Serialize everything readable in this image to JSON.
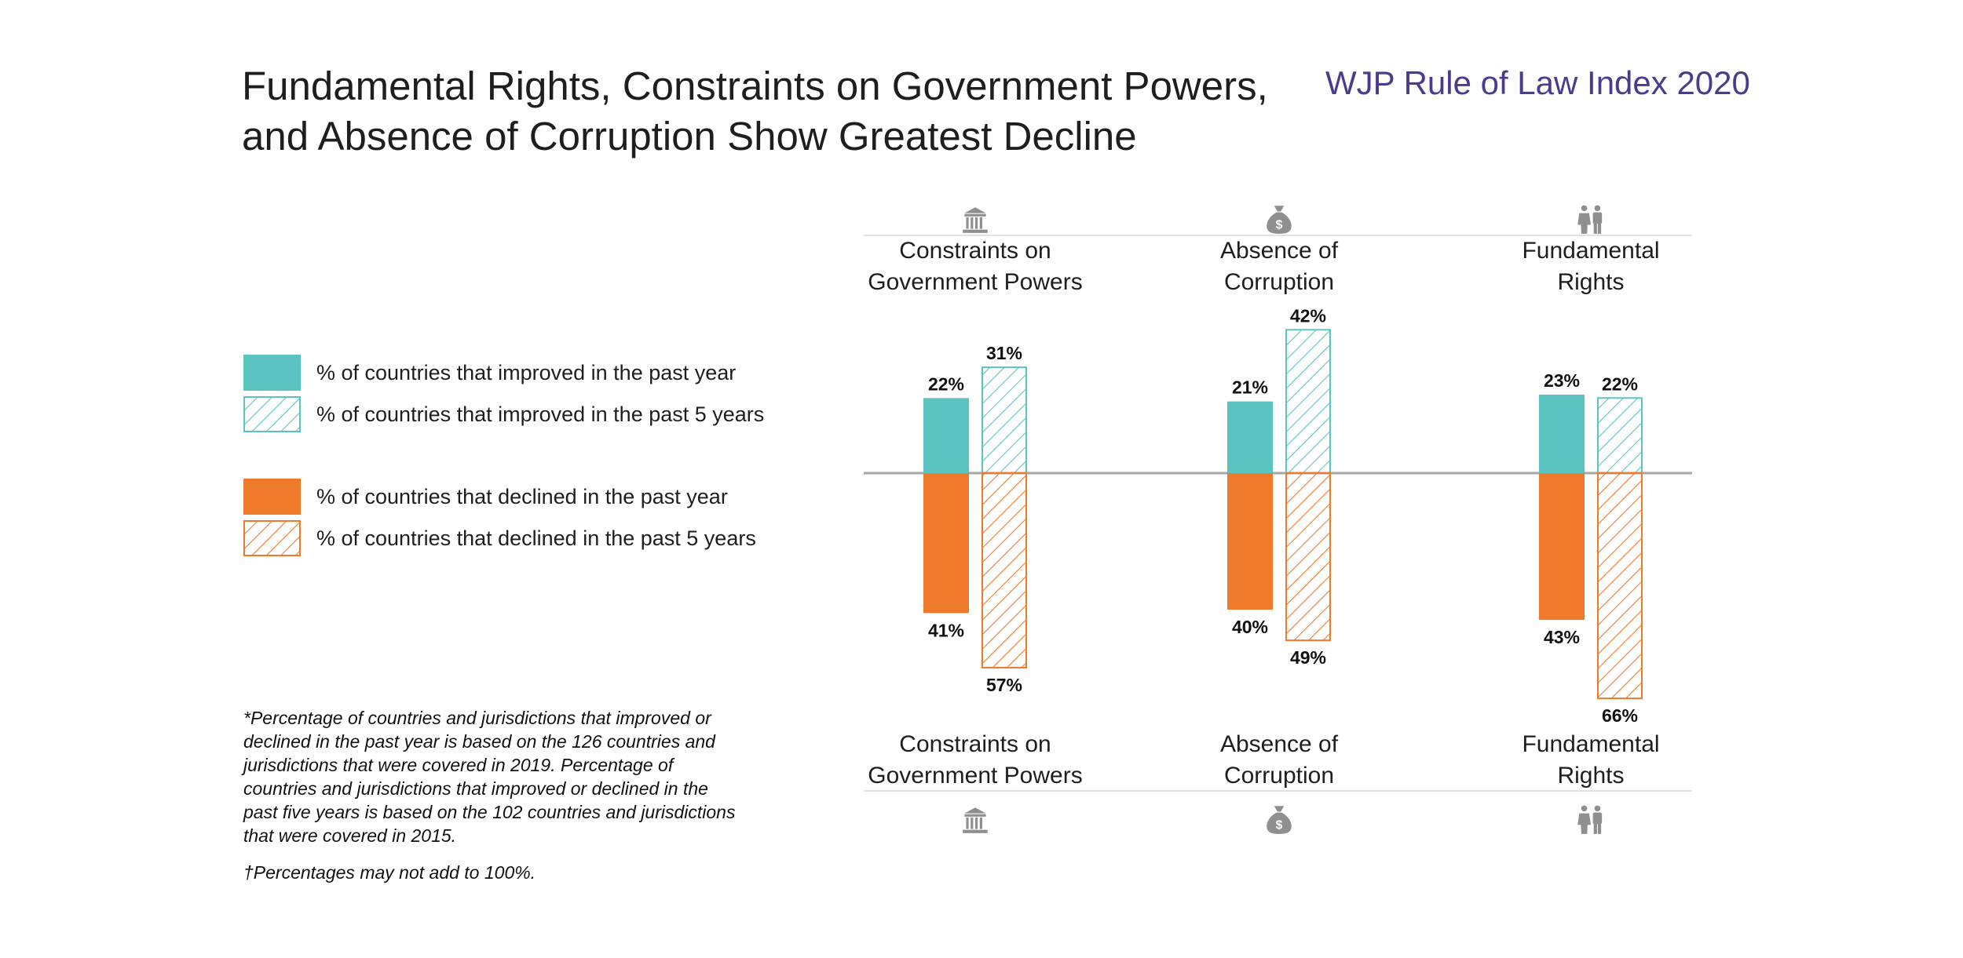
{
  "header": {
    "title_line1": "Fundamental Rights, Constraints on Government Powers,",
    "title_line2": "and Absence of Corruption Show Greatest Decline",
    "brand": "WJP Rule of Law Index 2020"
  },
  "colors": {
    "improved": "#5bc4c1",
    "declined": "#f07a2c",
    "axis": "#a6a6a6",
    "brand": "#4b3a8e"
  },
  "legend": [
    {
      "label": "% of countries that improved in the past year",
      "color": "#5bc4c1",
      "style": "solid"
    },
    {
      "label": "% of countries that improved in the past 5 years",
      "color": "#5bc4c1",
      "style": "hatched"
    },
    {
      "label": "% of countries that declined in the past year",
      "color": "#f07a2c",
      "style": "solid"
    },
    {
      "label": "% of countries that declined in the past 5 years",
      "color": "#f07a2c",
      "style": "hatched"
    }
  ],
  "icons": [
    "courthouse-icon",
    "money-bag-icon",
    "people-icon"
  ],
  "chart_data": {
    "type": "bar",
    "categories": [
      {
        "line1": "Constraints on",
        "line2": "Government Powers"
      },
      {
        "line1": "Absence of",
        "line2": "Corruption"
      },
      {
        "line1": "Fundamental",
        "line2": "Rights"
      }
    ],
    "series": [
      {
        "name": "% of countries that improved in the past year",
        "values": [
          22,
          21,
          23
        ],
        "labels": [
          "22%",
          "21%",
          "23%"
        ]
      },
      {
        "name": "% of countries that improved in the past 5 years",
        "values": [
          31,
          42,
          22
        ],
        "labels": [
          "31%",
          "42%",
          "22%"
        ]
      },
      {
        "name": "% of countries that declined in the past year",
        "values": [
          41,
          40,
          43
        ],
        "labels": [
          "41%",
          "40%",
          "43%"
        ]
      },
      {
        "name": "% of countries that declined in the past 5 years",
        "values": [
          57,
          49,
          66
        ],
        "labels": [
          "57%",
          "49%",
          "66%"
        ]
      }
    ],
    "title": "Fundamental Rights, Constraints on Government Powers, and Absence of Corruption Show Greatest Decline",
    "grid": false,
    "legend_position": "left"
  },
  "footnotes": {
    "note": "*Percentage of countries and jurisdictions that improved or declined in the past year is based on the 126 countries and jurisdictions that were covered in 2019. Percentage of countries and jurisdictions that improved or declined in the past five years is based on the 102 countries and jurisdictions that were covered in 2015.",
    "dagger": "†Percentages may not add to 100%."
  }
}
